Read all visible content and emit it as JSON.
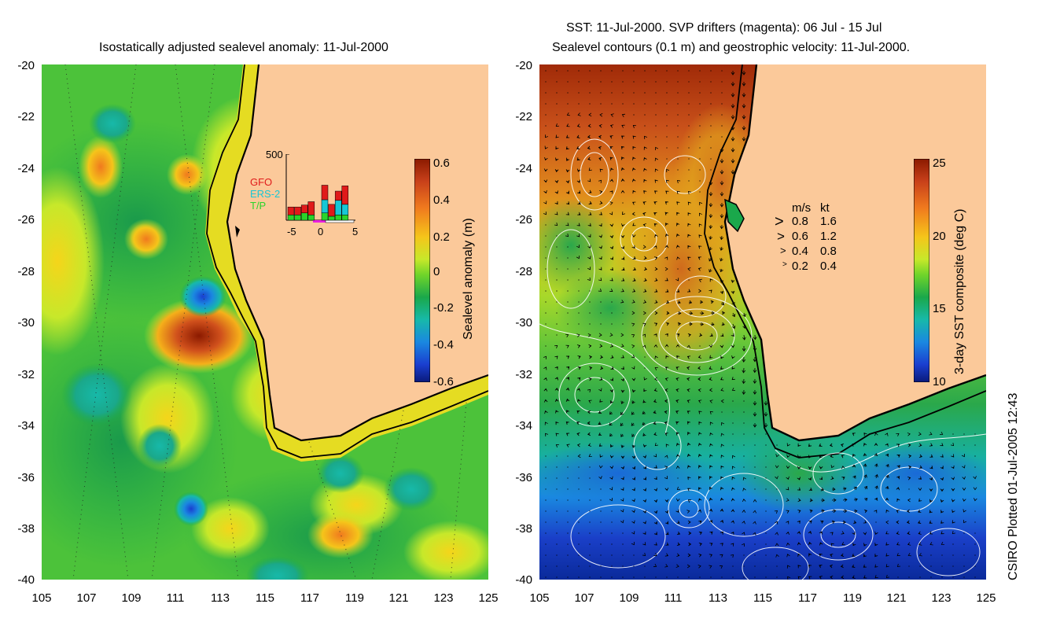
{
  "left_panel": {
    "title": "Isostatically adjusted sealevel anomaly: 11-Jul-2000",
    "y_ticks": [
      "-20",
      "-22",
      "-24",
      "-26",
      "-28",
      "-30",
      "-32",
      "-34",
      "-36",
      "-38",
      "-40"
    ],
    "x_ticks": [
      "105",
      "107",
      "109",
      "111",
      "113",
      "115",
      "117",
      "119",
      "121",
      "123",
      "125"
    ],
    "colorbar": {
      "label": "Sealevel anomaly (m)",
      "ticks": [
        "0.6",
        "0.4",
        "0.2",
        "0",
        "-0.2",
        "-0.4",
        "-0.6"
      ],
      "colors": [
        "#8b1a00",
        "#c8401a",
        "#f07a1e",
        "#f5c51a",
        "#c7e82a",
        "#6fd42a",
        "#1aa84b",
        "#17b9a9",
        "#1a88e0",
        "#1a3fd0",
        "#0a1a7a"
      ]
    },
    "inset": {
      "y_label": "500",
      "x_ticks": [
        "-5",
        "0",
        "5"
      ],
      "legend": [
        {
          "label": "GFO",
          "color": "#e01a1a"
        },
        {
          "label": "ERS-2",
          "color": "#17c7d6"
        },
        {
          "label": "T/P",
          "color": "#2ad42a"
        }
      ],
      "bars": [
        {
          "tp": 40,
          "ers": 0,
          "gfo": 60
        },
        {
          "tp": 40,
          "ers": 0,
          "gfo": 60
        },
        {
          "tp": 55,
          "ers": 0,
          "gfo": 60
        },
        {
          "tp": 40,
          "ers": 0,
          "gfo": 100
        },
        {
          "tp": 0,
          "ers": 0,
          "gfo": 0
        },
        {
          "tp": 55,
          "ers": 100,
          "gfo": 110
        },
        {
          "tp": 30,
          "ers": 0,
          "gfo": 90
        },
        {
          "tp": 40,
          "ers": 110,
          "gfo": 70
        },
        {
          "tp": 40,
          "ers": 80,
          "gfo": 140
        }
      ]
    }
  },
  "right_panel": {
    "title_line1": "SST: 11-Jul-2000. SVP drifters (magenta): 06 Jul - 15 Jul",
    "title_line2": "Sealevel contours (0.1 m) and geostrophic velocity: 11-Jul-2000.",
    "y_ticks": [
      "-20",
      "-22",
      "-24",
      "-26",
      "-28",
      "-30",
      "-32",
      "-34",
      "-36",
      "-38",
      "-40"
    ],
    "x_ticks": [
      "105",
      "107",
      "109",
      "111",
      "113",
      "115",
      "117",
      "119",
      "121",
      "123",
      "125"
    ],
    "colorbar": {
      "label": "3-day SST composite (deg C)",
      "ticks": [
        "25",
        "20",
        "15",
        "10"
      ],
      "colors": [
        "#8b1a00",
        "#c8401a",
        "#f07a1e",
        "#f5c51a",
        "#c7e82a",
        "#6fd42a",
        "#1aa84b",
        "#17b9a9",
        "#1a88e0",
        "#1a3fd0",
        "#0a1a7a"
      ]
    },
    "velocity_legend": {
      "header_ms": "m/s",
      "header_kt": "kt",
      "rows": [
        {
          "ms": "0.8",
          "kt": "1.6"
        },
        {
          "ms": "0.6",
          "kt": "1.2"
        },
        {
          "ms": "0.4",
          "kt": "0.8"
        },
        {
          "ms": "0.2",
          "kt": "0.4"
        }
      ]
    }
  },
  "credit": "CSIRO Plotted 01-Jul-2005 12:43",
  "colors": {
    "land": "#fbc99a",
    "coast": "#000000",
    "contour": "#ffffff"
  }
}
